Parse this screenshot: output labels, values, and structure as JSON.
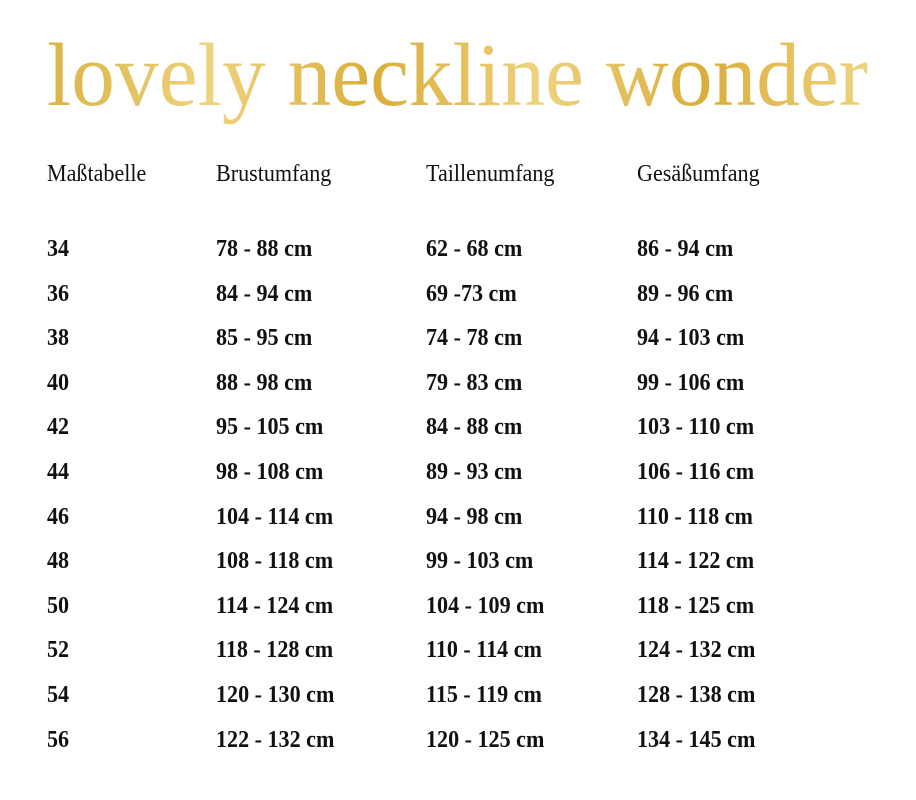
{
  "title": "lovely neckline wonder",
  "colors": {
    "title_gold_light": "#EFD27E",
    "title_gold_dark": "#D9AE3A",
    "text": "#111111"
  },
  "table": {
    "headers": [
      "Maßtabelle",
      "Brustumfang",
      "Taillenumfang",
      "Gesäßumfang"
    ],
    "rows": [
      [
        "34",
        "78 - 88 cm",
        "62 - 68 cm",
        "86 - 94 cm"
      ],
      [
        "36",
        "84 - 94 cm",
        "69 -73 cm",
        "89 - 96 cm"
      ],
      [
        "38",
        "85 - 95 cm",
        "74 - 78 cm",
        "94 - 103 cm"
      ],
      [
        "40",
        "88 - 98 cm",
        "79 - 83 cm",
        "99 - 106 cm"
      ],
      [
        "42",
        "95 - 105 cm",
        "84 - 88 cm",
        "103 - 110 cm"
      ],
      [
        "44",
        "98 - 108 cm",
        "89 - 93 cm",
        "106 - 116 cm"
      ],
      [
        "46",
        "104 - 114 cm",
        "94 - 98 cm",
        "110 - 118 cm"
      ],
      [
        "48",
        "108 - 118 cm",
        "99 - 103 cm",
        "114 - 122 cm"
      ],
      [
        "50",
        "114 - 124 cm",
        "104 - 109 cm",
        "118 - 125 cm"
      ],
      [
        "52",
        "118 - 128 cm",
        "110 - 114 cm",
        "124 - 132 cm"
      ],
      [
        "54",
        "120 - 130 cm",
        "115 - 119 cm",
        "128 - 138 cm"
      ],
      [
        "56",
        "122 - 132 cm",
        "120 - 125 cm",
        "134 - 145 cm"
      ]
    ]
  }
}
